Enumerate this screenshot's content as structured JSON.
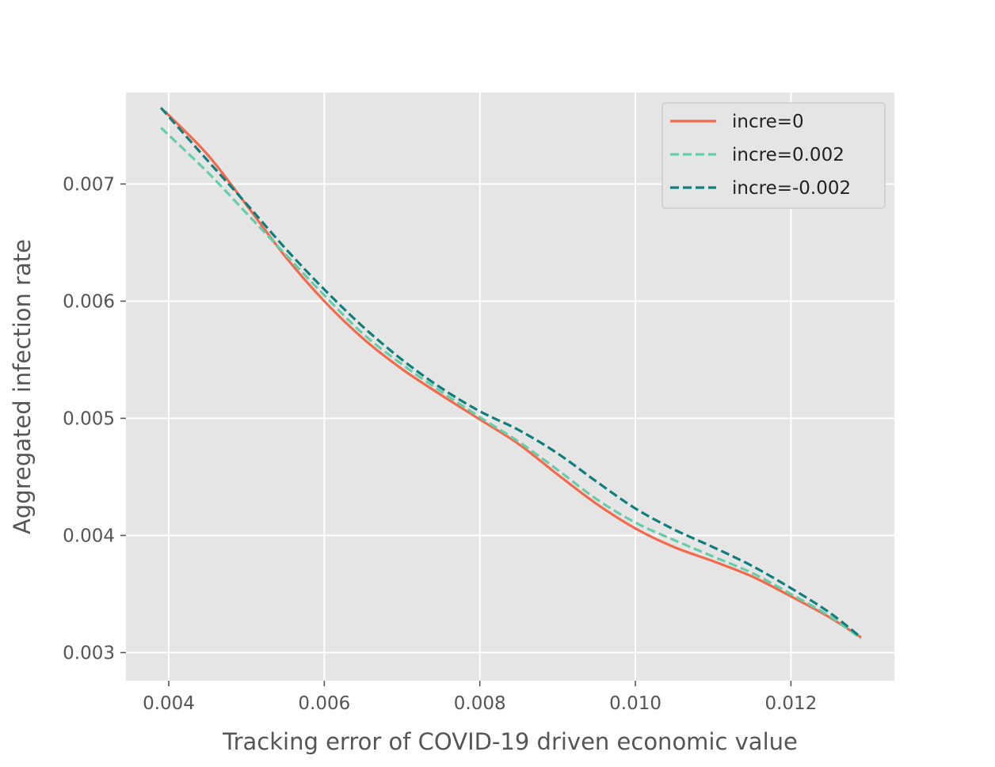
{
  "chart_data": {
    "type": "line",
    "title": "",
    "xlabel": "Tracking error of COVID-19 driven economic value",
    "ylabel": "Aggregated infection rate",
    "xlim": [
      0.00345,
      0.01333
    ],
    "ylim": [
      0.00276,
      0.00778
    ],
    "xticks": [
      0.004,
      0.006,
      0.008,
      0.01,
      0.012
    ],
    "xtick_labels": [
      "0.004",
      "0.006",
      "0.008",
      "0.010",
      "0.012"
    ],
    "yticks": [
      0.003,
      0.004,
      0.005,
      0.006,
      0.007
    ],
    "ytick_labels": [
      "0.003",
      "0.004",
      "0.005",
      "0.006",
      "0.007"
    ],
    "grid": true,
    "background": "#e5e5e5",
    "legend_position": "top-right",
    "series": [
      {
        "name": "incre=0",
        "color": "#f4694b",
        "dash": "solid",
        "x": [
          0.00395,
          0.0045,
          0.005,
          0.0055,
          0.006,
          0.0065,
          0.007,
          0.0075,
          0.008,
          0.0085,
          0.009,
          0.0095,
          0.01,
          0.0105,
          0.011,
          0.0115,
          0.012,
          0.0125,
          0.0129
        ],
        "y": [
          0.00762,
          0.00725,
          0.00682,
          0.00638,
          0.006,
          0.00568,
          0.00542,
          0.0052,
          0.00499,
          0.00478,
          0.00452,
          0.00427,
          0.00406,
          0.0039,
          0.00378,
          0.00365,
          0.00348,
          0.0033,
          0.00313
        ]
      },
      {
        "name": "incre=0.002",
        "color": "#66cdaa",
        "dash": "dashed",
        "x": [
          0.0039,
          0.0045,
          0.005,
          0.0055,
          0.006,
          0.0065,
          0.007,
          0.0075,
          0.008,
          0.0085,
          0.009,
          0.0095,
          0.01,
          0.0105,
          0.011,
          0.0115,
          0.012,
          0.0125,
          0.0129
        ],
        "y": [
          0.00748,
          0.0071,
          0.00675,
          0.0064,
          0.00605,
          0.00572,
          0.00546,
          0.00523,
          0.00501,
          0.0048,
          0.00456,
          0.00431,
          0.00411,
          0.00396,
          0.00382,
          0.00368,
          0.0035,
          0.00331,
          0.00312
        ]
      },
      {
        "name": "incre=-0.002",
        "color": "#107e7d",
        "dash": "dashed",
        "x": [
          0.0039,
          0.0045,
          0.005,
          0.0055,
          0.006,
          0.0065,
          0.007,
          0.0075,
          0.008,
          0.0085,
          0.009,
          0.0095,
          0.01,
          0.0105,
          0.011,
          0.0115,
          0.012,
          0.0125,
          0.0129
        ],
        "y": [
          0.00765,
          0.0072,
          0.00683,
          0.00645,
          0.0061,
          0.00578,
          0.0055,
          0.00526,
          0.00506,
          0.0049,
          0.0047,
          0.00446,
          0.00423,
          0.00405,
          0.0039,
          0.00374,
          0.00355,
          0.00334,
          0.00313
        ]
      }
    ]
  }
}
